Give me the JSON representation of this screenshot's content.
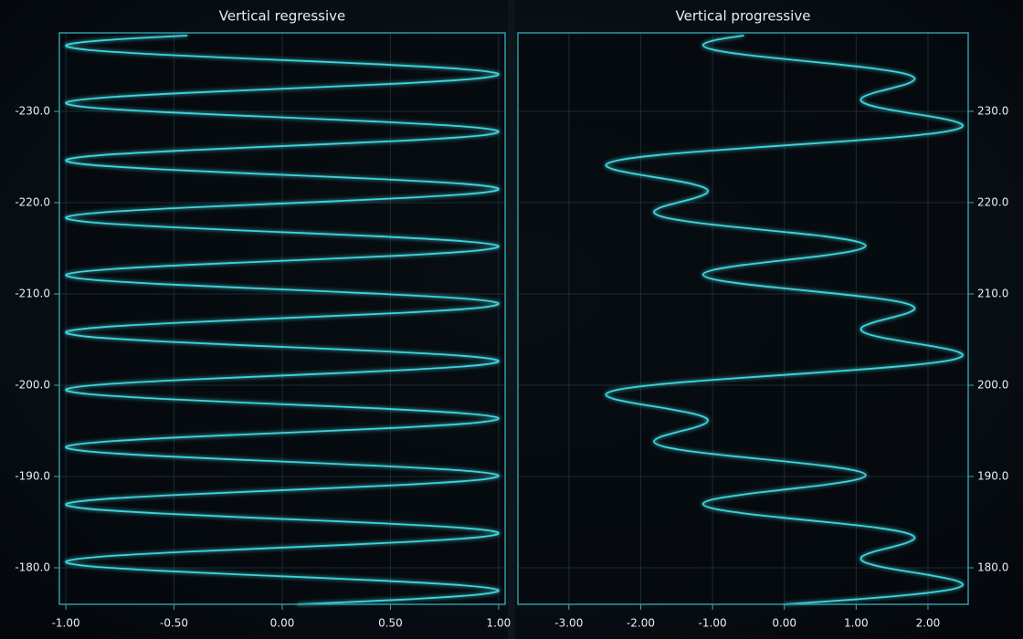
{
  "chart_data": [
    {
      "type": "line",
      "orientation": "vertical",
      "title": "Vertical regressive",
      "position_axis_side": "left",
      "grid": true,
      "x": [
        -176,
        -176.52,
        -177.05,
        -177.57,
        -178.09,
        -178.62,
        -179.14,
        -179.67,
        -180.19,
        -180.71,
        -181.24,
        -181.76,
        -182.28,
        -182.81,
        -183.33,
        -183.85,
        -184.38,
        -184.9,
        -185.42,
        -185.95,
        -186.47,
        -187,
        -187.52,
        -188.04,
        -188.57,
        -189.09,
        -189.61,
        -190.14,
        -190.66,
        -191.18,
        -191.71,
        -192.23,
        -192.76,
        -193.28,
        -193.8,
        -194.33,
        -194.85,
        -195.37,
        -195.9,
        -196.42,
        -196.94,
        -197.47,
        -197.99,
        -198.51,
        -199.04,
        -199.56,
        -200.09,
        -200.61,
        -201.13,
        -201.66,
        -202.18,
        -202.7,
        -203.23,
        -203.75,
        -204.27,
        -204.8,
        -205.32,
        -205.85,
        -206.37,
        -206.89,
        -207.42,
        -207.94,
        -208.46,
        -208.99,
        -209.51,
        -210.03,
        -210.56,
        -211.08,
        -211.6,
        -212.13,
        -212.65,
        -213.18,
        -213.7,
        -214.22,
        -214.75,
        -215.27,
        -215.79,
        -216.32,
        -216.84,
        -217.36,
        -217.89,
        -218.41,
        -218.94,
        -219.46,
        -219.98,
        -220.51,
        -221.03,
        -221.55,
        -222.08,
        -222.6,
        -223.12,
        -223.65,
        -224.17,
        -224.69,
        -225.22,
        -225.74,
        -226.27,
        -226.79,
        -227.31,
        -227.84,
        -228.36,
        -228.88,
        -229.41,
        -229.93,
        -230.45,
        -230.98,
        -231.5,
        -232.03,
        -232.55,
        -233.07,
        -233.6,
        -234.12,
        -234.64,
        -235.17,
        -235.69,
        -236.21,
        -236.74,
        -237.26,
        -237.78,
        -238.31
      ],
      "xlim": [
        -176,
        -238.6
      ],
      "xticks": [
        {
          "value": -180,
          "label": "-180.0"
        },
        {
          "value": -190,
          "label": "-190.0"
        },
        {
          "value": -200,
          "label": "-200.0"
        },
        {
          "value": -210,
          "label": "-210.0"
        },
        {
          "value": -220,
          "label": "-220.0"
        },
        {
          "value": -230,
          "label": "-230.0"
        }
      ],
      "ylim": [
        -1.03,
        1.03
      ],
      "yticks": [
        {
          "value": -1,
          "label": "-1.00"
        },
        {
          "value": -0.5,
          "label": "-0.50"
        },
        {
          "value": 0,
          "label": "0.00"
        },
        {
          "value": 0.5,
          "label": "0.50"
        },
        {
          "value": 1,
          "label": "1.00"
        }
      ],
      "series": [
        {
          "color": "#3fd3dc",
          "values": [
            0.07,
            0.559,
            0.899,
            0.998,
            0.829,
            0.438,
            -0.07,
            -0.559,
            -0.899,
            -0.998,
            -0.829,
            -0.438,
            0.07,
            0.559,
            0.899,
            0.998,
            0.829,
            0.438,
            -0.07,
            -0.559,
            -0.899,
            -0.998,
            -0.829,
            -0.438,
            0.07,
            0.559,
            0.899,
            0.998,
            0.829,
            0.438,
            -0.07,
            -0.559,
            -0.899,
            -0.998,
            -0.829,
            -0.438,
            0.07,
            0.559,
            0.899,
            0.998,
            0.829,
            0.438,
            -0.07,
            -0.559,
            -0.899,
            -0.998,
            -0.829,
            -0.438,
            0.07,
            0.559,
            0.899,
            0.998,
            0.829,
            0.438,
            -0.07,
            -0.559,
            -0.899,
            -0.998,
            -0.829,
            -0.438,
            0.07,
            0.559,
            0.899,
            0.998,
            0.829,
            0.438,
            -0.07,
            -0.559,
            -0.899,
            -0.998,
            -0.829,
            -0.438,
            0.07,
            0.559,
            0.899,
            0.998,
            0.829,
            0.438,
            -0.07,
            -0.559,
            -0.899,
            -0.998,
            -0.829,
            -0.438,
            0.07,
            0.559,
            0.899,
            0.998,
            0.829,
            0.438,
            -0.07,
            -0.559,
            -0.899,
            -0.998,
            -0.829,
            -0.438,
            0.07,
            0.559,
            0.899,
            0.998,
            0.829,
            0.438,
            -0.07,
            -0.559,
            -0.899,
            -0.998,
            -0.829,
            -0.438,
            0.07,
            0.559,
            0.899,
            0.998,
            0.829,
            0.438,
            -0.07,
            -0.559,
            -0.899,
            -0.998,
            -0.829,
            -0.438
          ]
        }
      ]
    },
    {
      "type": "line",
      "orientation": "vertical",
      "title": "Vertical progressive",
      "position_axis_side": "right",
      "grid": true,
      "x": [
        176,
        176.52,
        177.05,
        177.57,
        178.09,
        178.62,
        179.14,
        179.67,
        180.19,
        180.71,
        181.24,
        181.76,
        182.28,
        182.81,
        183.33,
        183.85,
        184.38,
        184.9,
        185.42,
        185.95,
        186.47,
        187,
        187.52,
        188.04,
        188.57,
        189.09,
        189.61,
        190.14,
        190.66,
        191.18,
        191.71,
        192.23,
        192.76,
        193.28,
        193.8,
        194.33,
        194.85,
        195.37,
        195.9,
        196.42,
        196.94,
        197.47,
        197.99,
        198.51,
        199.04,
        199.56,
        200.09,
        200.61,
        201.13,
        201.66,
        202.18,
        202.7,
        203.23,
        203.75,
        204.27,
        204.8,
        205.32,
        205.85,
        206.37,
        206.89,
        207.42,
        207.94,
        208.46,
        208.99,
        209.51,
        210.03,
        210.56,
        211.08,
        211.6,
        212.13,
        212.65,
        213.18,
        213.7,
        214.22,
        214.75,
        215.27,
        215.79,
        216.32,
        216.84,
        217.36,
        217.89,
        218.41,
        218.94,
        219.46,
        219.98,
        220.51,
        221.03,
        221.55,
        222.08,
        222.6,
        223.12,
        223.65,
        224.17,
        224.69,
        225.22,
        225.74,
        226.27,
        226.79,
        227.31,
        227.84,
        228.36,
        228.88,
        229.41,
        229.93,
        230.45,
        230.98,
        231.5,
        232.03,
        232.55,
        233.07,
        233.6,
        234.12,
        234.64,
        235.17,
        235.69,
        236.21,
        236.74,
        237.26,
        237.78,
        238.31
      ],
      "xlim": [
        176,
        238.6
      ],
      "xticks": [
        {
          "value": 180,
          "label": "180.0"
        },
        {
          "value": 190,
          "label": "190.0"
        },
        {
          "value": 200,
          "label": "200.0"
        },
        {
          "value": 210,
          "label": "210.0"
        },
        {
          "value": 220,
          "label": "220.0"
        },
        {
          "value": 230,
          "label": "230.0"
        }
      ],
      "ylim": [
        -3.71,
        2.56
      ],
      "yticks": [
        {
          "value": -3,
          "label": "-3.00"
        },
        {
          "value": -2,
          "label": "-2.00"
        },
        {
          "value": -1,
          "label": "-1.00"
        },
        {
          "value": 0,
          "label": "0.00"
        },
        {
          "value": 1,
          "label": "1.00"
        },
        {
          "value": 2,
          "label": "2.00"
        }
      ],
      "series": [
        {
          "color": "#3fd3dc",
          "values": [
            0,
            0.955,
            1.754,
            2.281,
            2.482,
            2.38,
            2.061,
            1.656,
            1.299,
            1.093,
            1.083,
            1.246,
            1.5,
            1.728,
            1.815,
            1.679,
            1.299,
            0.724,
            0.061,
            -0.552,
            -0.982,
            -1.133,
            -0.978,
            -0.563,
            0,
            0.563,
            0.978,
            1.133,
            0.982,
            0.552,
            -0.061,
            -0.724,
            -1.299,
            -1.679,
            -1.815,
            -1.728,
            -1.5,
            -1.246,
            -1.083,
            -1.093,
            -1.299,
            -1.656,
            -2.061,
            -2.38,
            -2.482,
            -2.281,
            -1.754,
            -0.955,
            0,
            0.955,
            1.754,
            2.281,
            2.482,
            2.38,
            2.061,
            1.656,
            1.299,
            1.093,
            1.083,
            1.246,
            1.5,
            1.728,
            1.815,
            1.679,
            1.299,
            0.724,
            0.061,
            -0.552,
            -0.982,
            -1.133,
            -0.978,
            -0.563,
            0,
            0.563,
            0.978,
            1.133,
            0.982,
            0.552,
            -0.061,
            -0.724,
            -1.299,
            -1.679,
            -1.815,
            -1.728,
            -1.5,
            -1.246,
            -1.083,
            -1.093,
            -1.299,
            -1.656,
            -2.061,
            -2.38,
            -2.482,
            -2.281,
            -1.754,
            -0.955,
            0,
            0.955,
            1.754,
            2.281,
            2.482,
            2.38,
            2.061,
            1.656,
            1.299,
            1.093,
            1.083,
            1.246,
            1.5,
            1.728,
            1.815,
            1.679,
            1.299,
            0.724,
            0.061,
            -0.552,
            -0.982,
            -1.133,
            -0.978,
            -0.563
          ]
        }
      ]
    }
  ]
}
